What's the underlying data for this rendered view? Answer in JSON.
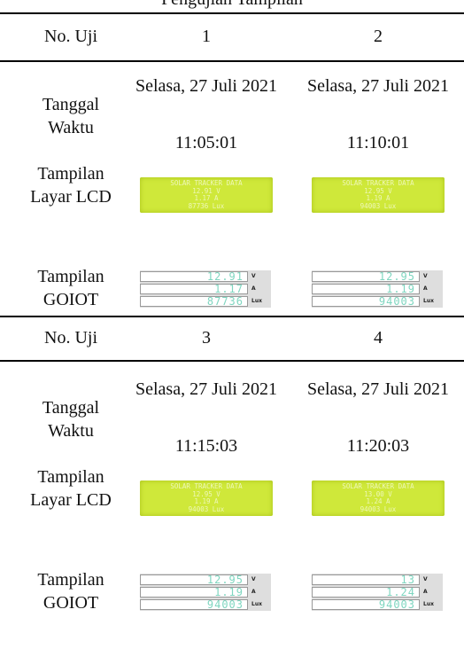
{
  "caption": "Pengujian Tampilan",
  "row_labels": {
    "no": "No. Uji",
    "date": "Tanggal Waktu",
    "lcd": "Tampilan Layar LCD",
    "goiot": "Tampilan GOIOT"
  },
  "tests": [
    {
      "no": "1",
      "date": "Selasa, 27 Juli 2021",
      "time": "11:05:01",
      "lcd": [
        "SOLAR TRACKER DATA",
        "12.91 V",
        "1.17 A",
        "87736 Lux"
      ],
      "goiot": [
        {
          "value": "12.91",
          "unit": "V"
        },
        {
          "value": "1.17",
          "unit": "A"
        },
        {
          "value": "87736",
          "unit": "Lux"
        }
      ]
    },
    {
      "no": "2",
      "date": "Selasa, 27 Juli 2021",
      "time": "11:10:01",
      "lcd": [
        "SOLAR TRACKER DATA",
        "12.95 V",
        "1.19 A",
        "94003 Lux"
      ],
      "goiot": [
        {
          "value": "12.95",
          "unit": "V"
        },
        {
          "value": "1.19",
          "unit": "A"
        },
        {
          "value": "94003",
          "unit": "Lux"
        }
      ]
    },
    {
      "no": "3",
      "date": "Selasa, 27 Juli 2021",
      "time": "11:15:03",
      "lcd": [
        "SOLAR TRACKER DATA",
        "12.95 V",
        "1.19 A",
        "94003 Lux"
      ],
      "goiot": [
        {
          "value": "12.95",
          "unit": "V"
        },
        {
          "value": "1.19",
          "unit": "A"
        },
        {
          "value": "94003",
          "unit": "Lux"
        }
      ]
    },
    {
      "no": "4",
      "date": "Selasa, 27 Juli 2021",
      "time": "11:20:03",
      "lcd": [
        "SOLAR TRACKER DATA",
        "13.00 V",
        "1.24 A",
        "94003 Lux"
      ],
      "goiot": [
        {
          "value": "13",
          "unit": "V"
        },
        {
          "value": "1.24",
          "unit": "A"
        },
        {
          "value": "94003",
          "unit": "Lux"
        }
      ]
    }
  ]
}
